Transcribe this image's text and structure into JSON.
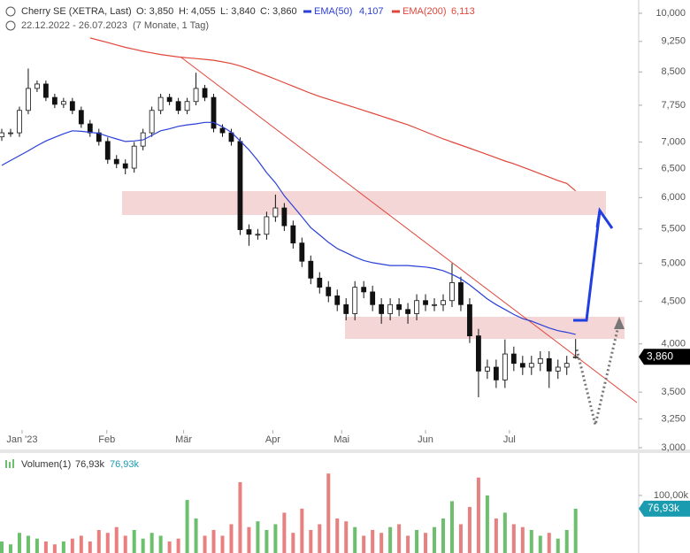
{
  "chart_data": [
    {
      "type": "candlestick",
      "title": "Cherry SE (XETRA, Last)",
      "header_values": [
        "O: 3,850",
        "H: 4,055",
        "L: 3,840",
        "C: 3,860"
      ],
      "subtitle": "22.12.2022 - 26.07.2023",
      "period": "(7 Monate, 1 Tag)",
      "xticks": [
        {
          "value": 2.3,
          "label": "Jan '23"
        },
        {
          "value": 11.9,
          "label": "Feb"
        },
        {
          "value": 20.6,
          "label": "Mär"
        },
        {
          "value": 30.7,
          "label": "Apr"
        },
        {
          "value": 38.5,
          "label": "Mai"
        },
        {
          "value": 48.0,
          "label": "Jun"
        },
        {
          "value": 57.5,
          "label": "Jul"
        }
      ],
      "open": [
        7100,
        7180,
        7180,
        7640,
        8120,
        8220,
        7920,
        7770,
        7830,
        7640,
        7360,
        7180,
        7010,
        6670,
        6590,
        6510,
        6920,
        7180,
        7640,
        7920,
        7830,
        7640,
        7830,
        8120,
        7920,
        7270,
        7180,
        7010,
        5490,
        5420,
        5420,
        5690,
        5830,
        5550,
        5290,
        5030,
        4800,
        4680,
        4570,
        4460,
        4350,
        4680,
        4620,
        4460,
        4350,
        4460,
        4400,
        4350,
        4510,
        4460,
        4460,
        4510,
        4740,
        4460,
        4090,
        3710,
        3750,
        3620,
        3890,
        3790,
        3750,
        3790,
        3840,
        3710,
        3750,
        3850
      ],
      "high": [
        7260,
        7260,
        7720,
        8580,
        8300,
        8300,
        8000,
        7910,
        7910,
        7720,
        7440,
        7260,
        7090,
        6750,
        6670,
        7000,
        7260,
        7720,
        8000,
        8000,
        7910,
        7910,
        8480,
        8200,
        8000,
        7350,
        7260,
        7090,
        5570,
        5500,
        5770,
        6050,
        5910,
        5630,
        5370,
        5110,
        4880,
        4760,
        4650,
        4540,
        4760,
        4760,
        4700,
        4540,
        4540,
        4540,
        4480,
        4590,
        4590,
        4540,
        4590,
        5000,
        4820,
        4540,
        4170,
        3830,
        3830,
        4050,
        3970,
        3870,
        3870,
        3920,
        3920,
        3830,
        3870,
        4055
      ],
      "low": [
        7020,
        7100,
        7100,
        7560,
        8040,
        7840,
        7690,
        7690,
        7560,
        7280,
        7100,
        6930,
        6590,
        6510,
        6400,
        6430,
        6840,
        7100,
        7560,
        7750,
        7560,
        7560,
        7750,
        7840,
        7190,
        7100,
        6930,
        5410,
        5250,
        5340,
        5340,
        5610,
        5470,
        5210,
        4950,
        4720,
        4600,
        4490,
        4380,
        4270,
        4270,
        4540,
        4380,
        4230,
        4270,
        4320,
        4230,
        4270,
        4380,
        4380,
        4380,
        4430,
        4380,
        4010,
        3450,
        3630,
        3540,
        3540,
        3710,
        3670,
        3670,
        3710,
        3540,
        3630,
        3670,
        3840
      ],
      "close": [
        7180,
        7180,
        7640,
        8120,
        8220,
        7920,
        7770,
        7830,
        7640,
        7360,
        7180,
        7010,
        6670,
        6590,
        6510,
        6920,
        7180,
        7640,
        7920,
        7830,
        7640,
        7830,
        8120,
        7920,
        7270,
        7180,
        7010,
        5490,
        5420,
        5420,
        5690,
        5830,
        5550,
        5290,
        5030,
        4800,
        4680,
        4570,
        4460,
        4350,
        4680,
        4620,
        4460,
        4350,
        4460,
        4400,
        4350,
        4510,
        4460,
        4460,
        4510,
        4740,
        4460,
        4090,
        3710,
        3750,
        3620,
        3890,
        3790,
        3750,
        3790,
        3840,
        3710,
        3750,
        3790,
        3860
      ],
      "last_label": "3,860",
      "series": [
        {
          "name": "EMA(50)",
          "color": "#2a3fd6",
          "last_label": "4,107",
          "values": [
            6560,
            6650,
            6740,
            6830,
            6930,
            7020,
            7090,
            7160,
            7220,
            7210,
            7190,
            7170,
            7110,
            7060,
            7010,
            7020,
            7040,
            7130,
            7220,
            7260,
            7310,
            7340,
            7360,
            7390,
            7390,
            7300,
            7190,
            7020,
            6850,
            6650,
            6430,
            6250,
            6030,
            5860,
            5690,
            5520,
            5410,
            5300,
            5210,
            5150,
            5090,
            5040,
            5010,
            4990,
            4970,
            4970,
            4970,
            4960,
            4950,
            4930,
            4900,
            4850,
            4790,
            4710,
            4620,
            4530,
            4460,
            4400,
            4340,
            4290,
            4260,
            4220,
            4180,
            4150,
            4130,
            4107
          ]
        },
        {
          "name": "EMA(200)",
          "color": "#e0463a",
          "last_label": "6,113",
          "values": [
            null,
            null,
            null,
            null,
            null,
            null,
            null,
            null,
            null,
            null,
            9340,
            9280,
            9220,
            9160,
            9100,
            9050,
            9000,
            8960,
            8920,
            8890,
            8860,
            8840,
            8820,
            8800,
            8780,
            8740,
            8700,
            8640,
            8570,
            8490,
            8410,
            8330,
            8250,
            8170,
            8090,
            8010,
            7940,
            7880,
            7820,
            7760,
            7700,
            7640,
            7580,
            7520,
            7460,
            7400,
            7340,
            7270,
            7200,
            7130,
            7060,
            7000,
            6940,
            6880,
            6820,
            6760,
            6700,
            6640,
            6590,
            6530,
            6470,
            6410,
            6350,
            6290,
            6240,
            6113
          ]
        }
      ],
      "ylim": [
        3000,
        10000
      ],
      "log_scale": true,
      "yticks": [
        {
          "value": 10000,
          "label": "10,000"
        },
        {
          "value": 9250,
          "label": "9,250"
        },
        {
          "value": 8500,
          "label": "8,500"
        },
        {
          "value": 7750,
          "label": "7,750"
        },
        {
          "value": 7000,
          "label": "7,000"
        },
        {
          "value": 6500,
          "label": "6,500"
        },
        {
          "value": 6000,
          "label": "6,000"
        },
        {
          "value": 5500,
          "label": "5,500"
        },
        {
          "value": 5000,
          "label": "5,000"
        },
        {
          "value": 4500,
          "label": "4,500"
        },
        {
          "value": 4000,
          "label": "4,000"
        },
        {
          "value": 3500,
          "label": "3,500"
        },
        {
          "value": 3250,
          "label": "3,250"
        },
        {
          "value": 3000,
          "label": "3,000"
        }
      ]
    },
    {
      "type": "bar",
      "legend": "Volumen(1)",
      "legend_values": [
        "76,93k",
        "76,93k"
      ],
      "values": [
        20000,
        15000,
        35000,
        30000,
        25000,
        20000,
        15000,
        20000,
        25000,
        30000,
        20000,
        40000,
        35000,
        45000,
        30000,
        40000,
        25000,
        35000,
        30000,
        20000,
        25000,
        92000,
        60000,
        30000,
        40000,
        30000,
        50000,
        123000,
        45000,
        55000,
        40000,
        50000,
        70000,
        35000,
        77000,
        40000,
        50000,
        138000,
        60000,
        55000,
        45000,
        30000,
        40000,
        35000,
        45000,
        50000,
        30000,
        40000,
        35000,
        45000,
        60000,
        90000,
        50000,
        80000,
        131000,
        100000,
        60000,
        70000,
        50000,
        45000,
        40000,
        30000,
        35000,
        25000,
        40000,
        76930
      ],
      "up_color": "#6cbf6c",
      "down_color": "#e88080",
      "last_label": "76,93k",
      "ylim": [
        0,
        169000
      ],
      "yticks": [
        {
          "value": 100000,
          "label": "100,00k"
        }
      ]
    }
  ]
}
